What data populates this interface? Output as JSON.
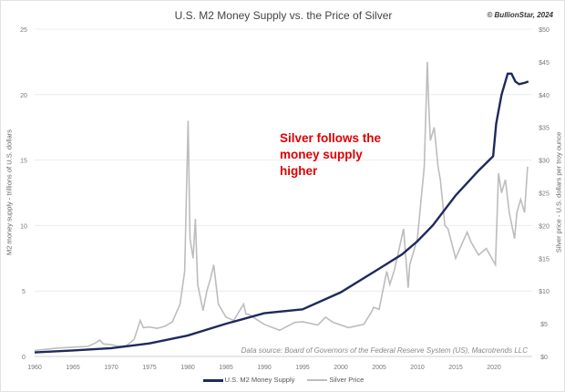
{
  "chart_data": {
    "type": "line",
    "title": "U.S. M2 Money Supply vs. the Price of Silver",
    "credit": "© BullionStar, 2024",
    "annotation": "Silver follows the money supply higher",
    "source": "Data source: Board of Governors of the Federal Reserve System (US), Macrotrends LLC",
    "ylabel": "M2 money supply - trillions of U.S. dollars",
    "y2label": "Silver price - U.S. dollars per troy ounce",
    "xlim": [
      1960,
      2025
    ],
    "ylim": [
      0,
      25
    ],
    "y2lim": [
      0,
      50
    ],
    "xticks": [
      "1960",
      "1965",
      "1970",
      "1975",
      "1980",
      "1985",
      "1990",
      "1995",
      "2000",
      "2005",
      "2010",
      "2015",
      "2020"
    ],
    "yticks": [
      "0",
      "5",
      "10",
      "15",
      "20",
      "25"
    ],
    "y2ticks": [
      "$0",
      "$5",
      "$10",
      "$15",
      "$20",
      "$25",
      "$30",
      "$35",
      "$40",
      "$45",
      "$50"
    ],
    "grid": true,
    "legend_position": "bottom",
    "colors": {
      "m2": "#1f2a5c",
      "silver": "#bdbdbd"
    },
    "series": [
      {
        "name": "U.S. M2 Money Supply",
        "axis": "left",
        "x": [
          1960,
          1965,
          1970,
          1975,
          1980,
          1985,
          1990,
          1995,
          2000,
          2005,
          2008,
          2010,
          2012,
          2015,
          2018,
          2019.9,
          2020.3,
          2021,
          2021.8,
          2022.3,
          2022.8,
          2023.3,
          2024,
          2024.5
        ],
        "y": [
          0.31,
          0.46,
          0.63,
          1.0,
          1.6,
          2.5,
          3.3,
          3.6,
          4.9,
          6.7,
          7.8,
          8.8,
          10.0,
          12.3,
          14.2,
          15.3,
          17.8,
          20.0,
          21.6,
          21.6,
          21.0,
          20.8,
          20.9,
          21.0
        ]
      },
      {
        "name": "Silver Price",
        "axis": "right",
        "x": [
          1960,
          1963,
          1967,
          1968,
          1968.5,
          1969,
          1970,
          1971,
          1972,
          1973,
          1973.8,
          1974.2,
          1975,
          1976,
          1977,
          1978,
          1979,
          1979.6,
          1980.05,
          1980.3,
          1980.7,
          1981,
          1981.3,
          1982,
          1982.5,
          1983,
          1983.4,
          1984,
          1985,
          1986,
          1987.3,
          1987.6,
          1988,
          1990,
          1992,
          1994,
          1995,
          1997,
          1998,
          1999,
          2001,
          2003,
          2004,
          2004.3,
          2005,
          2006,
          2006.4,
          2007,
          2008.2,
          2008.8,
          2009,
          2010,
          2010.9,
          2011.3,
          2011.5,
          2011.7,
          2012.2,
          2012.7,
          2013,
          2013.6,
          2014,
          2015,
          2016.5,
          2017,
          2018,
          2019,
          2020.2,
          2020.6,
          2021,
          2021.5,
          2022,
          2022.7,
          2023,
          2023.5,
          2024,
          2024.4
        ],
        "y": [
          0.91,
          1.28,
          1.55,
          2.1,
          2.5,
          1.9,
          1.8,
          1.55,
          1.65,
          2.6,
          5.5,
          4.4,
          4.5,
          4.3,
          4.6,
          5.3,
          8,
          13,
          36,
          18,
          15,
          21,
          11,
          7,
          10,
          12,
          14,
          8,
          6,
          5.5,
          8,
          6.5,
          6.4,
          4.9,
          4.0,
          5.2,
          5.3,
          4.8,
          6.0,
          5.2,
          4.4,
          4.9,
          6.8,
          7.5,
          7.2,
          13,
          11,
          13.2,
          19.5,
          10.5,
          14,
          18,
          29,
          45,
          38,
          33,
          35,
          29,
          27,
          20,
          19.5,
          15,
          19,
          17.5,
          15.5,
          16.5,
          14,
          28,
          25,
          27,
          22,
          18,
          22,
          24,
          22,
          29
        ]
      }
    ]
  }
}
